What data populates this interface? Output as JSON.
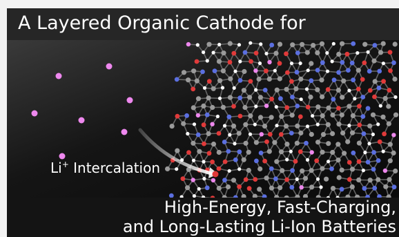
{
  "title": "A Layered Organic Cathode for",
  "ion_label": {
    "symbol": "Li",
    "charge": "+",
    "text": "Intercalation"
  },
  "subtitle": {
    "line1": "High-Energy, Fast-Charging,",
    "line2": "and Long-Lasting Li-Ion Batteries"
  },
  "colors": {
    "li_ion": "#ee88ee",
    "carbon": "#9a9a9a",
    "nitrogen": "#5b6fe0",
    "oxygen": "#e03a3a",
    "hydrogen": "#ffffff"
  },
  "icons": [
    "free-li-ion-dots",
    "intercalation-arrow",
    "molecular-lattice"
  ]
}
